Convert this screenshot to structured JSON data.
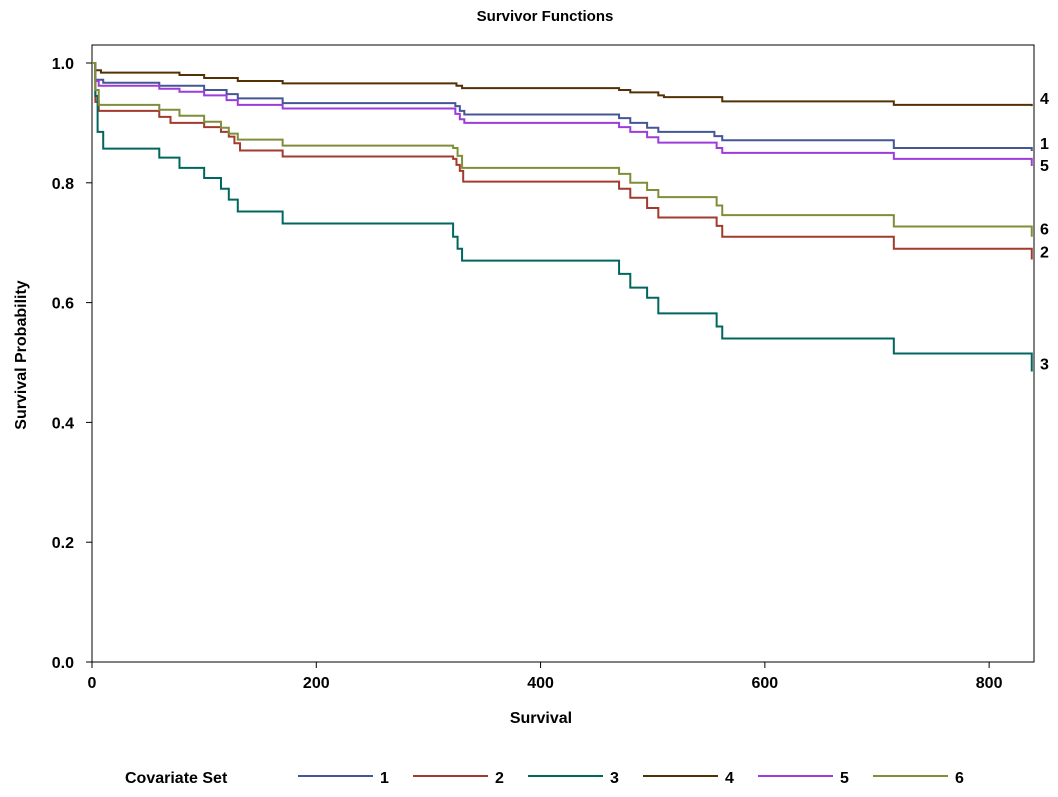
{
  "chart_data": {
    "type": "line",
    "title": "Survivor Functions",
    "xlabel": "Survival",
    "ylabel": "Survival Probability",
    "xlim": [
      0,
      840
    ],
    "ylim": [
      0,
      1.0
    ],
    "x_ticks": [
      0,
      200,
      400,
      600,
      800
    ],
    "y_ticks": [
      0.0,
      0.2,
      0.4,
      0.6,
      0.8,
      1.0
    ],
    "x_tick_labels": [
      "0",
      "200",
      "400",
      "600",
      "800"
    ],
    "y_tick_labels": [
      "0.0",
      "0.2",
      "0.4",
      "0.6",
      "0.8",
      "1.0"
    ],
    "grid": false,
    "legend": {
      "title": "Covariate Set",
      "placement": "bottom"
    },
    "series": [
      {
        "name": "1",
        "color": "#445694",
        "steps": [
          [
            0,
            1.0
          ],
          [
            3,
            0.972
          ],
          [
            10,
            0.967
          ],
          [
            60,
            0.962
          ],
          [
            100,
            0.955
          ],
          [
            120,
            0.948
          ],
          [
            130,
            0.941
          ],
          [
            170,
            0.933
          ],
          [
            324,
            0.928
          ],
          [
            328,
            0.92
          ],
          [
            332,
            0.914
          ],
          [
            470,
            0.908
          ],
          [
            480,
            0.9
          ],
          [
            495,
            0.892
          ],
          [
            505,
            0.885
          ],
          [
            555,
            0.878
          ],
          [
            562,
            0.871
          ],
          [
            715,
            0.858
          ],
          [
            838,
            0.853
          ]
        ],
        "end_label": "1"
      },
      {
        "name": "2",
        "color": "#A23A2E",
        "steps": [
          [
            0,
            1.0
          ],
          [
            3,
            0.935
          ],
          [
            6,
            0.92
          ],
          [
            60,
            0.91
          ],
          [
            70,
            0.9
          ],
          [
            100,
            0.893
          ],
          [
            115,
            0.885
          ],
          [
            122,
            0.877
          ],
          [
            127,
            0.866
          ],
          [
            132,
            0.854
          ],
          [
            170,
            0.844
          ],
          [
            322,
            0.84
          ],
          [
            325,
            0.83
          ],
          [
            328,
            0.82
          ],
          [
            331,
            0.802
          ],
          [
            470,
            0.79
          ],
          [
            480,
            0.775
          ],
          [
            495,
            0.758
          ],
          [
            505,
            0.742
          ],
          [
            557,
            0.728
          ],
          [
            562,
            0.71
          ],
          [
            715,
            0.69
          ],
          [
            838,
            0.672
          ]
        ],
        "end_label": "2"
      },
      {
        "name": "3",
        "color": "#01665E",
        "steps": [
          [
            0,
            1.0
          ],
          [
            3,
            0.945
          ],
          [
            5,
            0.885
          ],
          [
            10,
            0.857
          ],
          [
            60,
            0.842
          ],
          [
            78,
            0.825
          ],
          [
            100,
            0.808
          ],
          [
            115,
            0.79
          ],
          [
            122,
            0.772
          ],
          [
            130,
            0.752
          ],
          [
            170,
            0.732
          ],
          [
            322,
            0.71
          ],
          [
            326,
            0.69
          ],
          [
            330,
            0.67
          ],
          [
            470,
            0.648
          ],
          [
            480,
            0.625
          ],
          [
            495,
            0.608
          ],
          [
            505,
            0.582
          ],
          [
            557,
            0.56
          ],
          [
            562,
            0.54
          ],
          [
            715,
            0.515
          ],
          [
            838,
            0.485
          ]
        ],
        "end_label": "3"
      },
      {
        "name": "4",
        "color": "#543005",
        "steps": [
          [
            0,
            1.0
          ],
          [
            3,
            0.988
          ],
          [
            8,
            0.984
          ],
          [
            78,
            0.98
          ],
          [
            100,
            0.975
          ],
          [
            130,
            0.97
          ],
          [
            170,
            0.966
          ],
          [
            325,
            0.962
          ],
          [
            330,
            0.958
          ],
          [
            470,
            0.955
          ],
          [
            480,
            0.951
          ],
          [
            505,
            0.946
          ],
          [
            510,
            0.943
          ],
          [
            562,
            0.936
          ],
          [
            715,
            0.93
          ],
          [
            838,
            0.928
          ]
        ],
        "end_label": "4"
      },
      {
        "name": "5",
        "color": "#9D3CDB",
        "steps": [
          [
            0,
            1.0
          ],
          [
            3,
            0.97
          ],
          [
            6,
            0.962
          ],
          [
            60,
            0.957
          ],
          [
            78,
            0.952
          ],
          [
            100,
            0.946
          ],
          [
            120,
            0.938
          ],
          [
            130,
            0.93
          ],
          [
            170,
            0.924
          ],
          [
            324,
            0.915
          ],
          [
            328,
            0.906
          ],
          [
            332,
            0.9
          ],
          [
            470,
            0.893
          ],
          [
            480,
            0.885
          ],
          [
            495,
            0.876
          ],
          [
            505,
            0.867
          ],
          [
            557,
            0.858
          ],
          [
            562,
            0.85
          ],
          [
            715,
            0.84
          ],
          [
            838,
            0.828
          ]
        ],
        "end_label": "5"
      },
      {
        "name": "6",
        "color": "#7F8E39",
        "steps": [
          [
            0,
            1.0
          ],
          [
            3,
            0.955
          ],
          [
            6,
            0.93
          ],
          [
            60,
            0.922
          ],
          [
            78,
            0.912
          ],
          [
            100,
            0.902
          ],
          [
            115,
            0.892
          ],
          [
            122,
            0.882
          ],
          [
            130,
            0.872
          ],
          [
            170,
            0.862
          ],
          [
            322,
            0.858
          ],
          [
            326,
            0.845
          ],
          [
            330,
            0.825
          ],
          [
            470,
            0.815
          ],
          [
            480,
            0.8
          ],
          [
            495,
            0.788
          ],
          [
            505,
            0.776
          ],
          [
            557,
            0.762
          ],
          [
            562,
            0.746
          ],
          [
            715,
            0.727
          ],
          [
            838,
            0.71
          ]
        ],
        "end_label": "6"
      }
    ]
  }
}
